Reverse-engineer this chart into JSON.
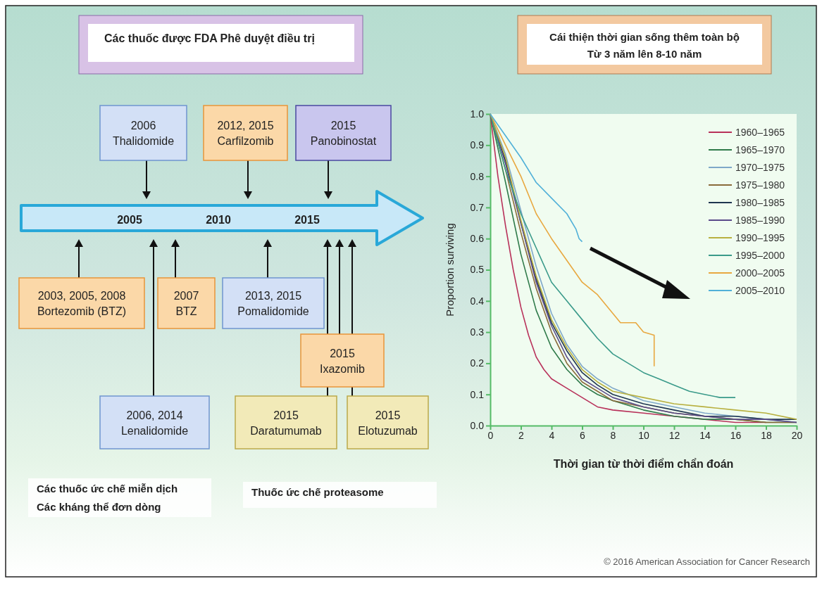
{
  "chart_data": [
    {
      "type": "other",
      "title": "Các thuốc được FDA Phê duyệt điều trị",
      "annotations": [
        "2005",
        "2010",
        "2015",
        "2006\nThalidomide",
        "2012, 2015\nCarfilzomib",
        "2015\nPanobinostat",
        "2003, 2005, 2008\nBortezomib (BTZ)",
        "2007\nBTZ",
        "2013, 2015\nPomalidomide",
        "2006, 2014\nLenalidomide",
        "2015\nIxazomib",
        "2015\nDaratumumab",
        "2015\nElotuzumab",
        "Các thuốc ức chế miễn dịch\nCác kháng thể đơn dòng",
        "Thuốc ức chế proteasome"
      ]
    },
    {
      "type": "line",
      "title": "Cái thiện thời gian sống thêm toàn bộ",
      "subtitle": "Từ 3 năm lên 8-10 năm",
      "xlabel": "Thời gian từ thời điểm chẩn đoán",
      "ylabel": "Proportion surviving",
      "xlim": [
        0,
        20
      ],
      "xticks": [
        0,
        2,
        4,
        6,
        8,
        10,
        12,
        14,
        16,
        18,
        20
      ],
      "ylim": [
        0,
        1
      ],
      "yticks": [
        {
          "value": 0,
          "label": "0.0"
        },
        0.1,
        0.2,
        0.3,
        0.4,
        0.5,
        0.6,
        0.7,
        0.8,
        0.9,
        {
          "value": 1,
          "label": "1.0"
        }
      ],
      "legend": "top right",
      "grid": false,
      "annotations": [
        "© 2016 American Association for Cancer Research"
      ],
      "series": [
        {
          "name": "1960–1965",
          "color": "#b8315a",
          "x": [
            0,
            0.5,
            1,
            1.5,
            2,
            2.5,
            3,
            3.5,
            4,
            5,
            6,
            7,
            8,
            10,
            12,
            14,
            16,
            18
          ],
          "values": [
            1,
            0.8,
            0.64,
            0.5,
            0.38,
            0.29,
            0.22,
            0.18,
            0.15,
            0.12,
            0.09,
            0.06,
            0.05,
            0.04,
            0.03,
            0.02,
            0.01,
            0.01
          ]
        },
        {
          "name": "1965–1970",
          "color": "#2f7a4a",
          "x": [
            0,
            1,
            2,
            3,
            4,
            5,
            6,
            7,
            8,
            10,
            12,
            14,
            16,
            18,
            20
          ],
          "values": [
            1,
            0.78,
            0.55,
            0.37,
            0.25,
            0.18,
            0.13,
            0.1,
            0.08,
            0.05,
            0.03,
            0.02,
            0.02,
            0.01,
            0.01
          ]
        },
        {
          "name": "1970–1975",
          "color": "#7fa8c8",
          "x": [
            0,
            1,
            2,
            3,
            4,
            5,
            6,
            7,
            8,
            10,
            12,
            14,
            16,
            18,
            20
          ],
          "values": [
            1,
            0.87,
            0.69,
            0.51,
            0.36,
            0.26,
            0.19,
            0.15,
            0.12,
            0.08,
            0.06,
            0.04,
            0.03,
            0.02,
            0.01
          ]
        },
        {
          "name": "1975–1980",
          "color": "#8a6a3a",
          "x": [
            0,
            1,
            2,
            3,
            4,
            5,
            6,
            7,
            8,
            10,
            12,
            14,
            16,
            18,
            20
          ],
          "values": [
            1,
            0.82,
            0.62,
            0.44,
            0.3,
            0.2,
            0.14,
            0.11,
            0.08,
            0.06,
            0.04,
            0.03,
            0.02,
            0.01,
            0.01
          ]
        },
        {
          "name": "1980–1985",
          "color": "#1f3550",
          "x": [
            0,
            1,
            2,
            3,
            4,
            5,
            6,
            7,
            8,
            10,
            12,
            14,
            16,
            18,
            20
          ],
          "values": [
            1,
            0.85,
            0.65,
            0.47,
            0.33,
            0.24,
            0.17,
            0.13,
            0.1,
            0.07,
            0.05,
            0.03,
            0.03,
            0.02,
            0.02
          ]
        },
        {
          "name": "1985–1990",
          "color": "#5a4a8a",
          "x": [
            0,
            1,
            2,
            3,
            4,
            5,
            6,
            7,
            8,
            10,
            12,
            14,
            16,
            18,
            20
          ],
          "values": [
            1,
            0.84,
            0.65,
            0.46,
            0.32,
            0.22,
            0.15,
            0.12,
            0.09,
            0.06,
            0.04,
            0.03,
            0.02,
            0.02,
            0.01
          ]
        },
        {
          "name": "1990–1995",
          "color": "#b8b040",
          "x": [
            0,
            1,
            2,
            3,
            4,
            5,
            6,
            7,
            8,
            10,
            12,
            14,
            16,
            18,
            20
          ],
          "values": [
            1,
            0.86,
            0.66,
            0.48,
            0.34,
            0.25,
            0.18,
            0.14,
            0.11,
            0.09,
            0.07,
            0.06,
            0.05,
            0.04,
            0.02
          ]
        },
        {
          "name": "1995–2000",
          "color": "#3a9a8a",
          "x": [
            0,
            1,
            2,
            3,
            4,
            5,
            6,
            7,
            8,
            9,
            10,
            11,
            12,
            13,
            14,
            15,
            16
          ],
          "values": [
            1,
            0.82,
            0.68,
            0.57,
            0.46,
            0.4,
            0.34,
            0.28,
            0.23,
            0.2,
            0.17,
            0.15,
            0.13,
            0.11,
            0.1,
            0.09,
            0.09
          ]
        },
        {
          "name": "2000–2005",
          "color": "#e8a840",
          "x": [
            0,
            1,
            2,
            3,
            4,
            5,
            6,
            7,
            8,
            8.5,
            9.5,
            10,
            10.7,
            10.7
          ],
          "values": [
            1,
            0.9,
            0.8,
            0.68,
            0.6,
            0.53,
            0.46,
            0.42,
            0.36,
            0.33,
            0.33,
            0.3,
            0.29,
            0.19
          ]
        },
        {
          "name": "2005–2010",
          "color": "#50b0d8",
          "x": [
            0,
            1,
            2,
            3,
            4,
            5,
            5.6,
            5.8,
            6
          ],
          "values": [
            1,
            0.93,
            0.86,
            0.78,
            0.73,
            0.68,
            0.63,
            0.6,
            0.59
          ]
        }
      ]
    }
  ]
}
